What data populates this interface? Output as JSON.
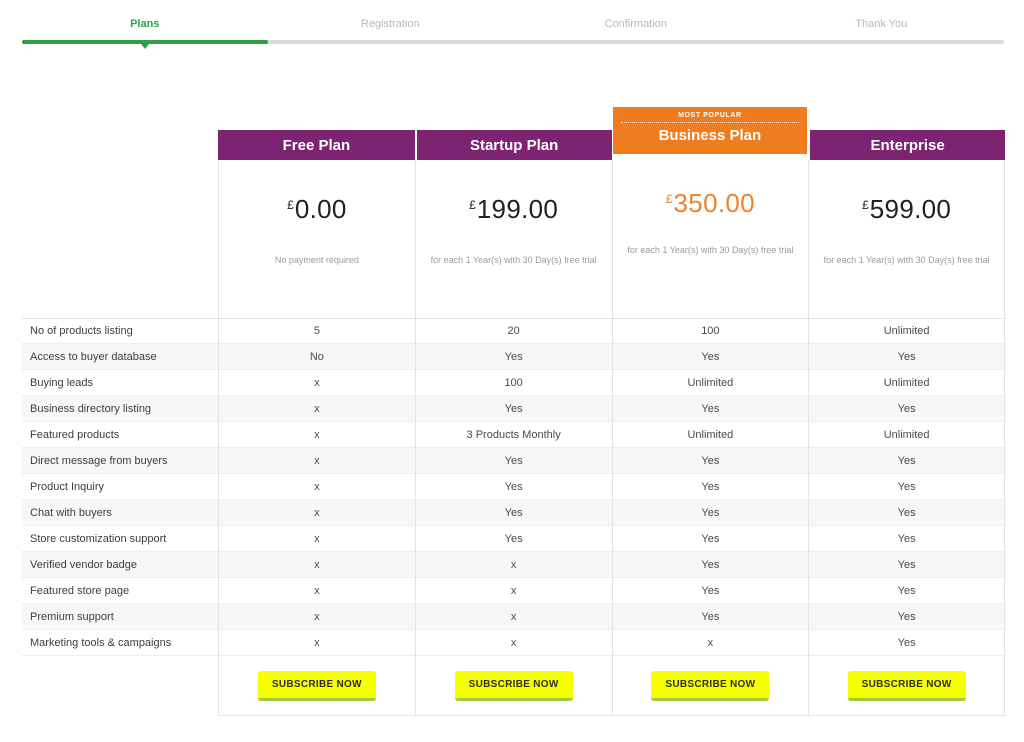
{
  "stepper": {
    "steps": [
      {
        "label": "Plans",
        "active": true
      },
      {
        "label": "Registration",
        "active": false
      },
      {
        "label": "Confirmation",
        "active": false
      },
      {
        "label": "Thank You",
        "active": false
      }
    ],
    "progress_percent": 25,
    "active_color": "#2f9e44"
  },
  "plans": [
    {
      "name": "Free Plan",
      "currency": "£",
      "price": "0.00",
      "note": "No payment required",
      "highlighted": false,
      "subscribe_label": "SUBSCRIBE NOW"
    },
    {
      "name": "Startup Plan",
      "currency": "£",
      "price": "199.00",
      "note": "for each 1 Year(s) with 30 Day(s) free trial",
      "highlighted": false,
      "subscribe_label": "SUBSCRIBE NOW"
    },
    {
      "name": "Business Plan",
      "badge": "MOST POPULAR",
      "currency": "£",
      "price": "350.00",
      "note": "for each 1 Year(s) with 30 Day(s) free trial",
      "highlighted": true,
      "subscribe_label": "SUBSCRIBE NOW"
    },
    {
      "name": "Enterprise",
      "currency": "£",
      "price": "599.00",
      "note": "for each 1 Year(s) with 30 Day(s) free trial",
      "highlighted": false,
      "subscribe_label": "SUBSCRIBE NOW"
    }
  ],
  "features": [
    {
      "label": "No of products listing",
      "values": [
        "5",
        "20",
        "100",
        "Unlimited"
      ]
    },
    {
      "label": "Access to buyer database",
      "values": [
        "No",
        "Yes",
        "Yes",
        "Yes"
      ]
    },
    {
      "label": "Buying leads",
      "values": [
        "x",
        "100",
        "Unlimited",
        "Unlimited"
      ]
    },
    {
      "label": "Business directory listing",
      "values": [
        "x",
        "Yes",
        "Yes",
        "Yes"
      ]
    },
    {
      "label": "Featured products",
      "values": [
        "x",
        "3 Products Monthly",
        "Unlimited",
        "Unlimited"
      ]
    },
    {
      "label": "Direct message from buyers",
      "values": [
        "x",
        "Yes",
        "Yes",
        "Yes"
      ]
    },
    {
      "label": "Product Inquiry",
      "values": [
        "x",
        "Yes",
        "Yes",
        "Yes"
      ]
    },
    {
      "label": "Chat with buyers",
      "values": [
        "x",
        "Yes",
        "Yes",
        "Yes"
      ]
    },
    {
      "label": "Store customization support",
      "values": [
        "x",
        "Yes",
        "Yes",
        "Yes"
      ]
    },
    {
      "label": "Verified vendor badge",
      "values": [
        "x",
        "x",
        "Yes",
        "Yes"
      ]
    },
    {
      "label": "Featured store page",
      "values": [
        "x",
        "x",
        "Yes",
        "Yes"
      ]
    },
    {
      "label": "Premium support",
      "values": [
        "x",
        "x",
        "Yes",
        "Yes"
      ]
    },
    {
      "label": "Marketing tools & campaigns",
      "values": [
        "x",
        "x",
        "x",
        "Yes"
      ]
    }
  ],
  "colors": {
    "header_purple": "#7c2371",
    "highlight_orange": "#ef7c1e",
    "price_orange": "#f0812e",
    "progress_green": "#2f9e44",
    "button_yellow": "#f6ff00",
    "button_edge_green": "#a2cb3a"
  }
}
